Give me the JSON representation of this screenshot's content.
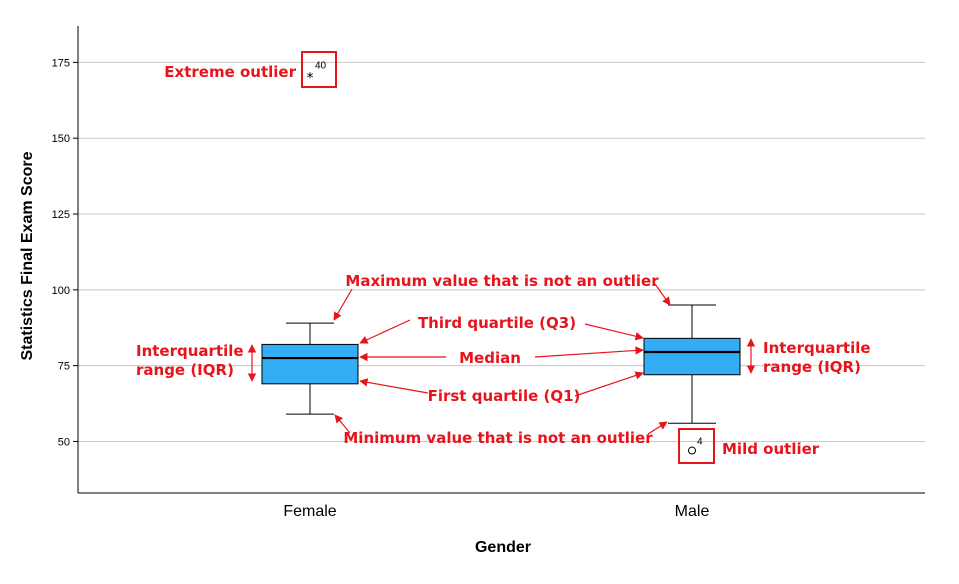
{
  "chart_data": {
    "type": "boxplot",
    "xlabel": "Gender",
    "ylabel": "Statistics Final Exam Score",
    "categories": [
      "Female",
      "Male"
    ],
    "ylim": [
      33,
      187
    ],
    "yticks": [
      50,
      75,
      100,
      125,
      150,
      175
    ],
    "grid": true,
    "box_color": "#33adf5",
    "annotation_color": "#e8141c",
    "boxes": [
      {
        "category": "Female",
        "min": 59,
        "q1": 69,
        "median": 77.5,
        "q3": 82,
        "max": 89,
        "outliers": [
          {
            "value": 171,
            "kind": "extreme",
            "symbol": "*",
            "label": "40"
          }
        ]
      },
      {
        "category": "Male",
        "min": 56,
        "q1": 72,
        "median": 79.5,
        "q3": 84,
        "max": 95,
        "outliers": [
          {
            "value": 47,
            "kind": "mild",
            "symbol": "o",
            "label": "4"
          }
        ]
      }
    ],
    "annotations": {
      "extreme_outlier": "Extreme outlier",
      "max_value": "Maximum value that is not an outlier",
      "q3": "Third quartile (Q3)",
      "iqr_left_line1": "Interquartile",
      "iqr_left_line2": "range (IQR)",
      "median": "Median",
      "iqr_right_line1": "Interquartile",
      "iqr_right_line2": "range (IQR)",
      "q1": "First quartile (Q1)",
      "min_value": "Minimum value that is not an outlier",
      "mild_outlier": "Mild outlier"
    }
  }
}
